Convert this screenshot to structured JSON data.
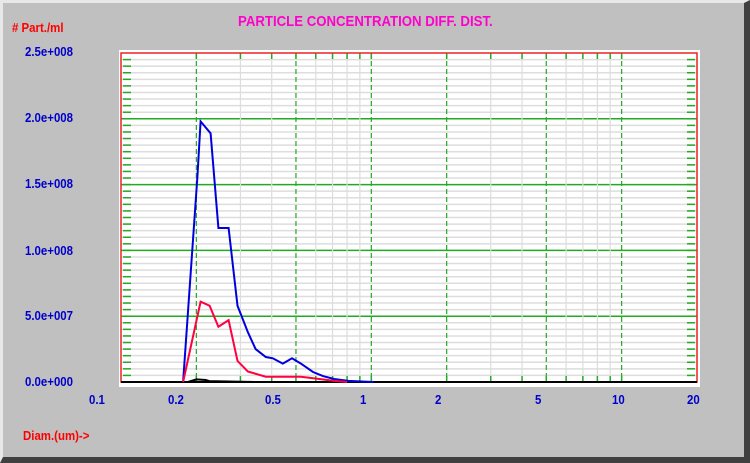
{
  "chart_data": {
    "type": "line",
    "title": "PARTICLE CONCENTRATION DIFF. DIST.",
    "ylabel": "# Part./ml",
    "xlabel": "Diam.(um)->",
    "xscale": "log",
    "xlim": [
      0.1,
      20
    ],
    "ylim": [
      0,
      250000000
    ],
    "x_ticks": [
      "0.1",
      "0.2",
      "0.5",
      "1",
      "2",
      "5",
      "10",
      "20"
    ],
    "y_ticks": [
      "0.0e+000",
      "5.0e+007",
      "1.0e+008",
      "1.5e+008",
      "2.0e+008",
      "2.5e+008"
    ],
    "grid": true,
    "series": [
      {
        "name": "blue",
        "color": "#0000dd",
        "x": [
          0.177,
          0.202,
          0.208,
          0.228,
          0.245,
          0.269,
          0.292,
          0.321,
          0.345,
          0.379,
          0.404,
          0.443,
          0.482,
          0.523,
          0.585,
          0.641,
          0.71,
          0.809,
          1.02
        ],
        "y": [
          0,
          156000000,
          198000000,
          189000000,
          117000000,
          117000000,
          58000000,
          38000000,
          25000000,
          19000000,
          18000000,
          14000000,
          18000000,
          14000000,
          7600000,
          4500000,
          2300000,
          800000,
          0
        ]
      },
      {
        "name": "red",
        "color": "#ff0040",
        "x": [
          0.177,
          0.208,
          0.226,
          0.245,
          0.269,
          0.292,
          0.321,
          0.379,
          0.523,
          0.62,
          0.71,
          0.8
        ],
        "y": [
          0,
          61000000,
          58000000,
          42000000,
          47000000,
          16000000,
          8000000,
          4000000,
          4000000,
          2300000,
          800000,
          0
        ]
      },
      {
        "name": "black",
        "color": "#000000",
        "x": [
          0.185,
          0.2,
          0.218,
          0.225,
          0.345
        ],
        "y": [
          0,
          2000000,
          1500000,
          700000,
          0
        ]
      }
    ]
  }
}
